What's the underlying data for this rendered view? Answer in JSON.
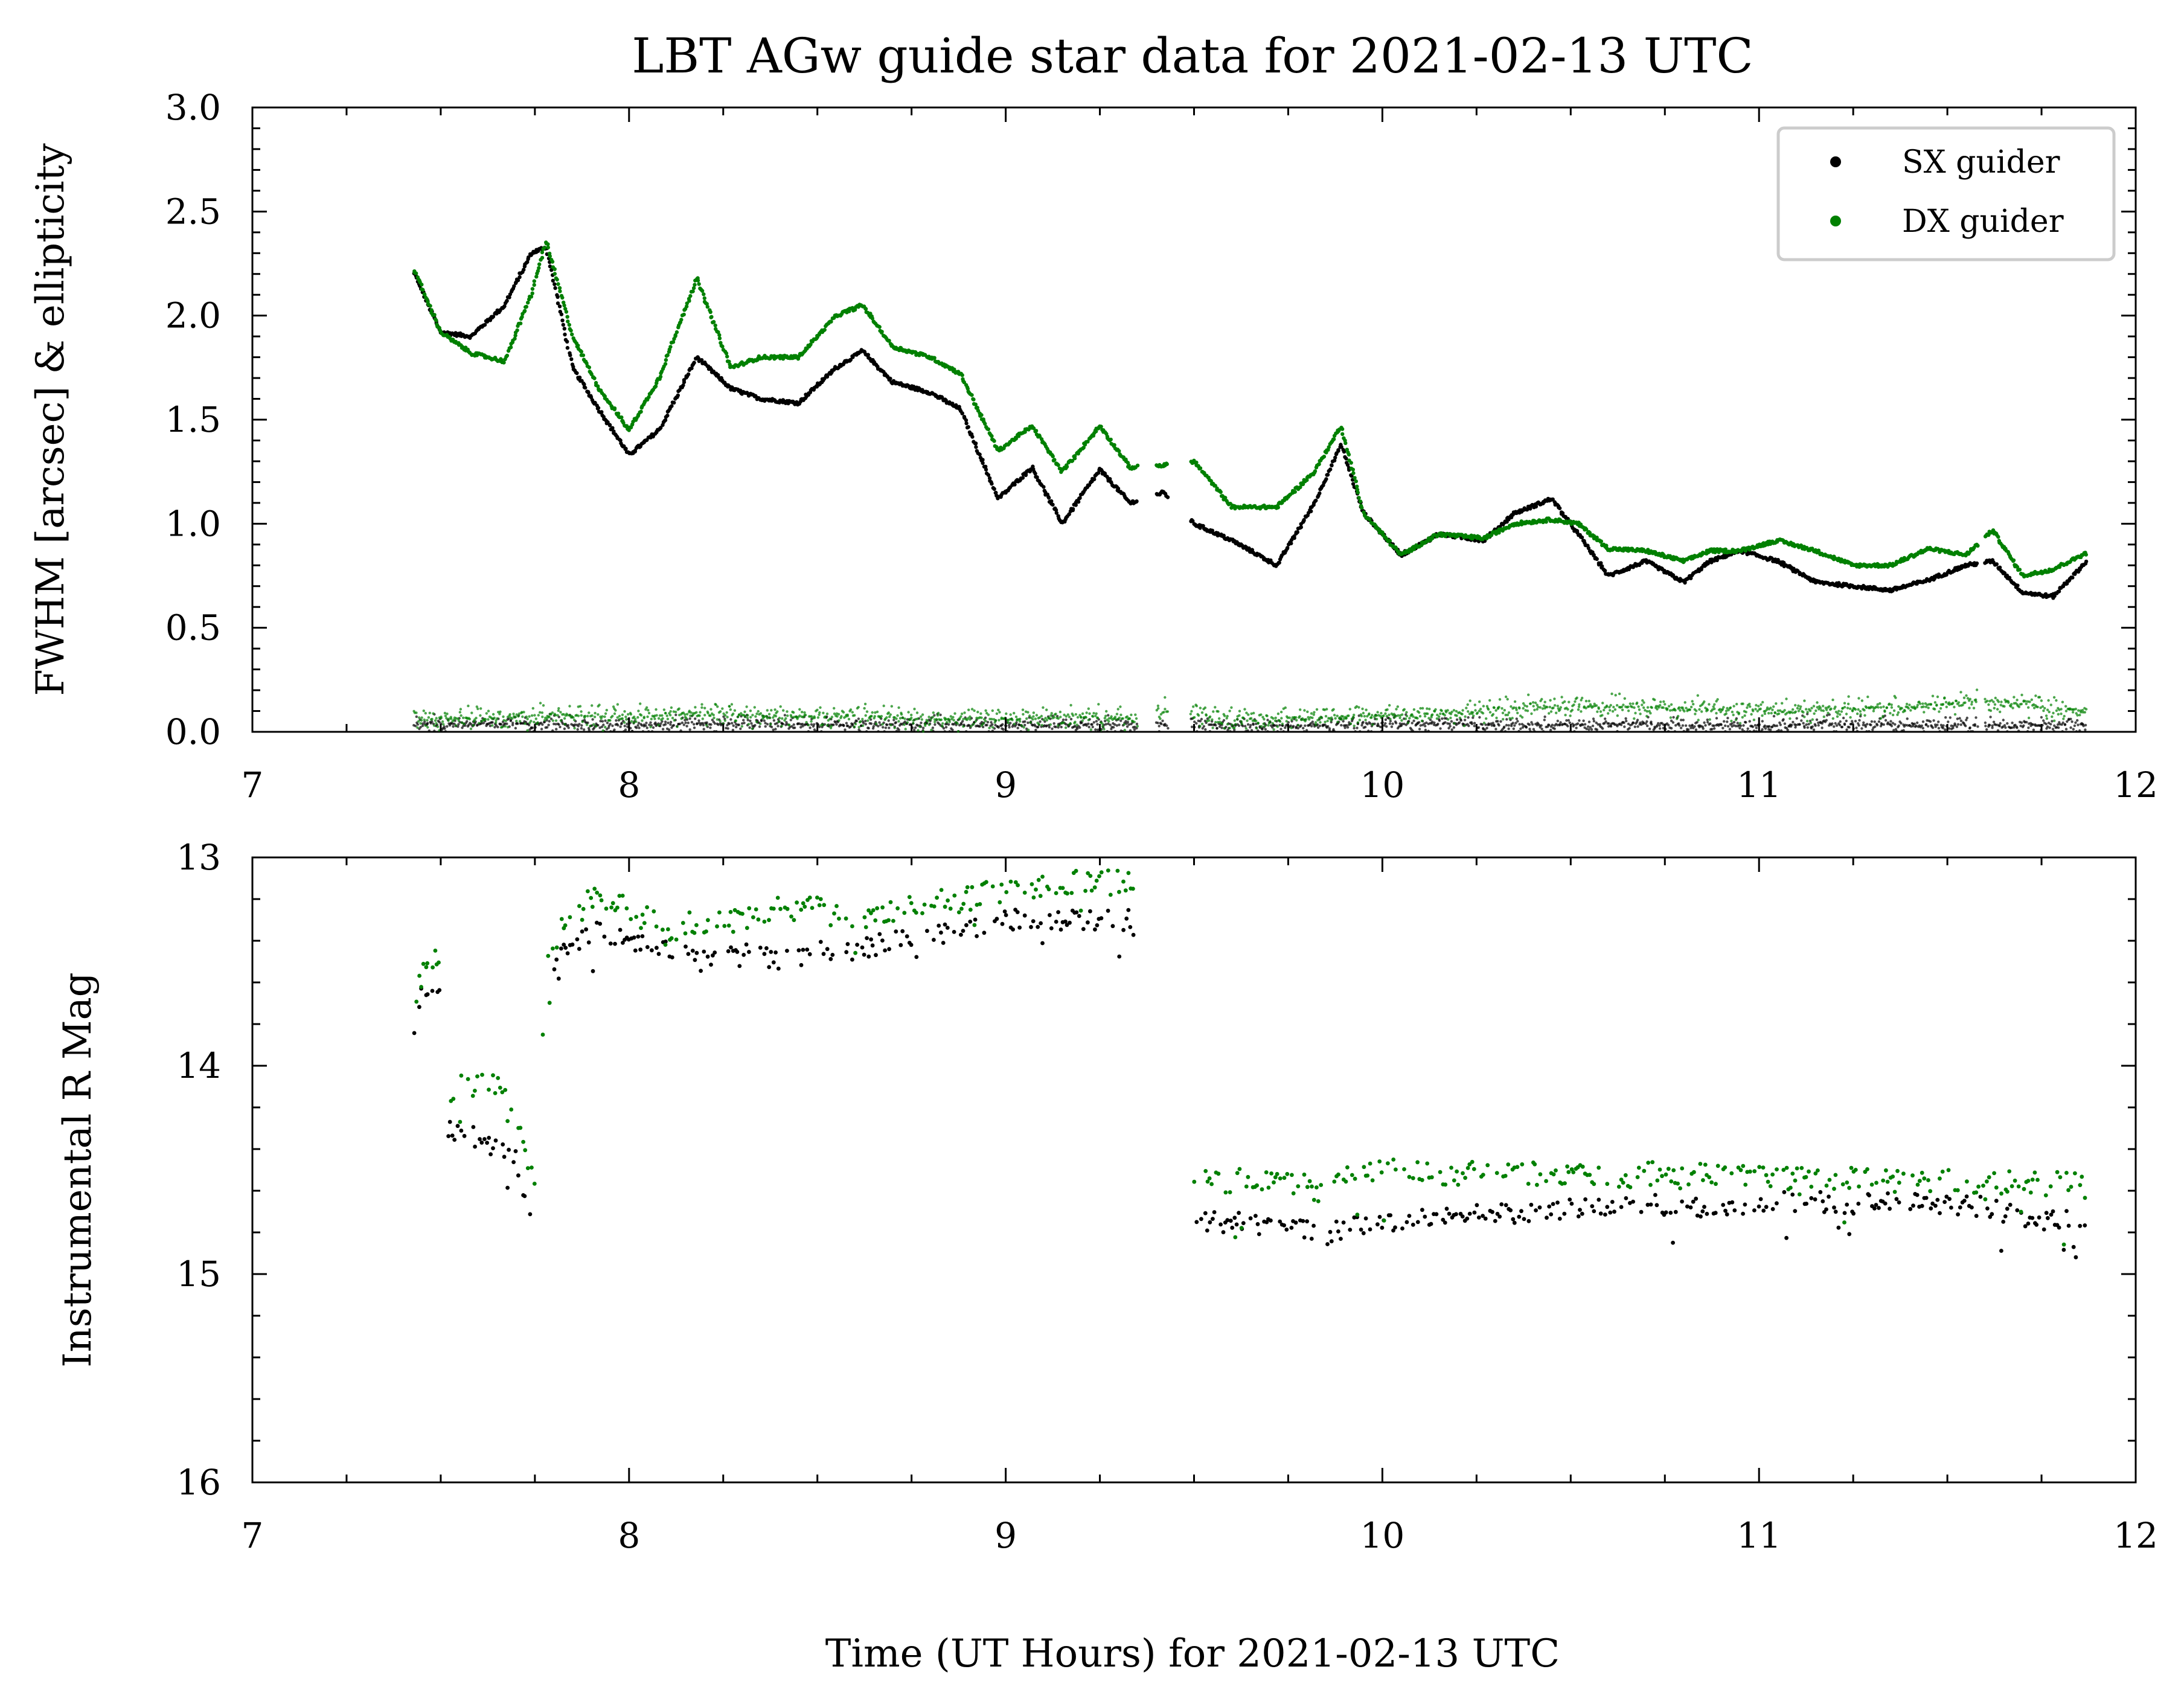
{
  "title": "LBT AGw guide star data for 2021-02-13 UTC",
  "xlabel": "Time (UT Hours) for 2021-02-13 UTC",
  "legend": {
    "placement": "top-right",
    "entries": [
      {
        "label": "SX guider",
        "color": "#000000"
      },
      {
        "label": "DX guider",
        "color": "#008000"
      }
    ]
  },
  "chart_data": [
    {
      "type": "scatter",
      "ylabel": "FWHM [arcsec] & ellipticity",
      "xlim": [
        7,
        12
      ],
      "ylim": [
        0,
        3
      ],
      "x_ticks": [
        "7",
        "8",
        "9",
        "10",
        "11",
        "12"
      ],
      "y_ticks": [
        "0.0",
        "0.5",
        "1.0",
        "1.5",
        "2.0",
        "2.5",
        "3.0"
      ],
      "series": [
        {
          "name": "SX guider",
          "color": "#000000",
          "x": [
            7.43,
            7.5,
            7.58,
            7.67,
            7.74,
            7.78,
            7.85,
            7.92,
            8.0,
            8.08,
            8.18,
            8.27,
            8.35,
            8.45,
            8.55,
            8.62,
            8.7,
            8.8,
            8.88,
            8.98,
            9.07,
            9.15,
            9.25,
            9.33,
            9.42,
            9.5,
            9.6,
            9.72,
            9.82,
            9.89,
            9.95,
            10.05,
            10.15,
            10.27,
            10.35,
            10.45,
            10.52,
            10.6,
            10.7,
            10.8,
            10.87,
            10.95,
            11.05,
            11.15,
            11.25,
            11.35,
            11.45,
            11.55,
            11.62,
            11.7,
            11.78,
            11.87
          ],
          "y": [
            2.2,
            1.92,
            1.9,
            2.05,
            2.3,
            2.33,
            1.75,
            1.55,
            1.33,
            1.45,
            1.8,
            1.65,
            1.6,
            1.58,
            1.75,
            1.83,
            1.68,
            1.63,
            1.55,
            1.12,
            1.27,
            1.0,
            1.26,
            1.1,
            1.15,
            1.0,
            0.92,
            0.8,
            1.1,
            1.38,
            1.05,
            0.85,
            0.95,
            0.92,
            1.05,
            1.12,
            0.95,
            0.75,
            0.82,
            0.72,
            0.82,
            0.87,
            0.82,
            0.72,
            0.7,
            0.68,
            0.73,
            0.8,
            0.82,
            0.67,
            0.65,
            0.82
          ]
        },
        {
          "name": "DX guider",
          "color": "#008000",
          "x": [
            7.43,
            7.5,
            7.58,
            7.67,
            7.74,
            7.78,
            7.85,
            7.92,
            8.0,
            8.08,
            8.18,
            8.27,
            8.35,
            8.45,
            8.55,
            8.62,
            8.7,
            8.8,
            8.88,
            8.98,
            9.07,
            9.15,
            9.25,
            9.33,
            9.42,
            9.5,
            9.6,
            9.72,
            9.82,
            9.89,
            9.95,
            10.05,
            10.15,
            10.27,
            10.35,
            10.45,
            10.52,
            10.6,
            10.7,
            10.8,
            10.87,
            10.95,
            11.05,
            11.15,
            11.25,
            11.35,
            11.45,
            11.55,
            11.62,
            11.7,
            11.78,
            11.87
          ],
          "y": [
            2.22,
            1.92,
            1.82,
            1.78,
            2.1,
            2.36,
            1.9,
            1.65,
            1.45,
            1.7,
            2.18,
            1.75,
            1.8,
            1.8,
            2.0,
            2.05,
            1.85,
            1.8,
            1.72,
            1.35,
            1.47,
            1.25,
            1.47,
            1.27,
            1.28,
            1.3,
            1.08,
            1.08,
            1.25,
            1.47,
            1.05,
            0.85,
            0.95,
            0.93,
            1.0,
            1.02,
            1.0,
            0.88,
            0.87,
            0.82,
            0.87,
            0.87,
            0.92,
            0.87,
            0.8,
            0.8,
            0.88,
            0.85,
            0.97,
            0.75,
            0.78,
            0.86
          ]
        },
        {
          "name": "SX guider ellipticity",
          "color": "#000000",
          "x": [
            7.43,
            7.6,
            7.8,
            8.0,
            8.2,
            8.4,
            8.6,
            8.8,
            9.0,
            9.2,
            9.35,
            9.42,
            9.6,
            9.8,
            10.0,
            10.2,
            10.4,
            10.6,
            10.8,
            11.0,
            11.2,
            11.4,
            11.6,
            11.87
          ],
          "y": [
            0.04,
            0.04,
            0.04,
            0.03,
            0.04,
            0.04,
            0.03,
            0.04,
            0.03,
            0.04,
            0.03,
            0.04,
            0.03,
            0.03,
            0.04,
            0.04,
            0.03,
            0.04,
            0.03,
            0.03,
            0.04,
            0.03,
            0.03,
            0.03
          ]
        },
        {
          "name": "DX guider ellipticity",
          "color": "#008000",
          "x": [
            7.43,
            7.6,
            7.8,
            8.0,
            8.2,
            8.4,
            8.6,
            8.8,
            9.0,
            9.2,
            9.35,
            9.42,
            9.6,
            9.8,
            10.0,
            10.2,
            10.4,
            10.6,
            10.8,
            11.0,
            11.2,
            11.4,
            11.6,
            11.87
          ],
          "y": [
            0.07,
            0.06,
            0.08,
            0.07,
            0.09,
            0.07,
            0.08,
            0.06,
            0.06,
            0.07,
            0.06,
            0.1,
            0.06,
            0.07,
            0.08,
            0.09,
            0.12,
            0.12,
            0.11,
            0.1,
            0.11,
            0.12,
            0.15,
            0.1
          ]
        }
      ]
    },
    {
      "type": "scatter",
      "ylabel": "Instrumental R Mag",
      "xlim": [
        7,
        12
      ],
      "ylim": [
        16,
        13
      ],
      "y_inverted": true,
      "x_ticks": [
        "7",
        "8",
        "9",
        "10",
        "11",
        "12"
      ],
      "y_ticks": [
        "13",
        "14",
        "15",
        "16"
      ],
      "series": [
        {
          "name": "SX guider",
          "color": "#000000",
          "x": [
            7.43,
            7.45,
            7.48,
            7.5,
            7.52,
            7.56,
            7.6,
            7.65,
            7.7,
            7.75,
            7.78,
            7.82,
            7.9,
            8.0,
            8.1,
            8.2,
            8.3,
            8.4,
            8.5,
            8.6,
            8.7,
            8.8,
            8.9,
            9.0,
            9.1,
            9.2,
            9.33,
            9.5,
            9.6,
            9.7,
            9.8,
            9.85,
            9.9,
            10.0,
            10.1,
            10.2,
            10.3,
            10.4,
            10.5,
            10.6,
            10.7,
            10.8,
            10.9,
            11.0,
            11.1,
            11.2,
            11.3,
            11.4,
            11.5,
            11.6,
            11.7,
            11.8,
            11.87
          ],
          "y": [
            13.8,
            13.65,
            13.6,
            13.65,
            14.32,
            14.3,
            14.35,
            14.4,
            14.45,
            14.85,
            13.7,
            13.45,
            13.35,
            13.4,
            13.45,
            13.5,
            13.45,
            13.5,
            13.45,
            13.45,
            13.4,
            13.38,
            13.35,
            13.3,
            13.3,
            13.3,
            13.3,
            14.75,
            14.75,
            14.77,
            14.78,
            14.82,
            14.78,
            14.75,
            14.73,
            14.72,
            14.71,
            14.7,
            14.69,
            14.68,
            14.67,
            14.67,
            14.68,
            14.66,
            14.65,
            14.66,
            14.66,
            14.66,
            14.67,
            14.68,
            14.72,
            14.75,
            14.73
          ]
        },
        {
          "name": "DX guider",
          "color": "#008000",
          "x": [
            7.43,
            7.45,
            7.48,
            7.5,
            7.52,
            7.56,
            7.6,
            7.65,
            7.7,
            7.75,
            7.78,
            7.82,
            7.9,
            8.0,
            8.1,
            8.2,
            8.3,
            8.4,
            8.5,
            8.6,
            8.7,
            8.8,
            8.9,
            9.0,
            9.1,
            9.2,
            9.33,
            9.5,
            9.6,
            9.7,
            9.8,
            9.85,
            9.9,
            10.0,
            10.1,
            10.2,
            10.3,
            10.4,
            10.5,
            10.6,
            10.7,
            10.8,
            10.9,
            11.0,
            11.1,
            11.2,
            11.3,
            11.4,
            11.5,
            11.6,
            11.7,
            11.8,
            11.87
          ],
          "y": [
            13.7,
            13.55,
            13.5,
            13.5,
            14.15,
            14.1,
            14.08,
            14.1,
            14.2,
            14.6,
            13.55,
            13.35,
            13.2,
            13.25,
            13.35,
            13.3,
            13.3,
            13.25,
            13.25,
            13.3,
            13.25,
            13.22,
            13.2,
            13.15,
            13.15,
            13.12,
            13.12,
            14.55,
            14.55,
            14.55,
            14.57,
            14.62,
            14.55,
            14.5,
            14.5,
            14.52,
            14.52,
            14.52,
            14.53,
            14.53,
            14.52,
            14.53,
            14.53,
            14.53,
            14.55,
            14.55,
            14.55,
            14.55,
            14.56,
            14.56,
            14.57,
            14.57,
            14.58
          ]
        }
      ]
    }
  ]
}
